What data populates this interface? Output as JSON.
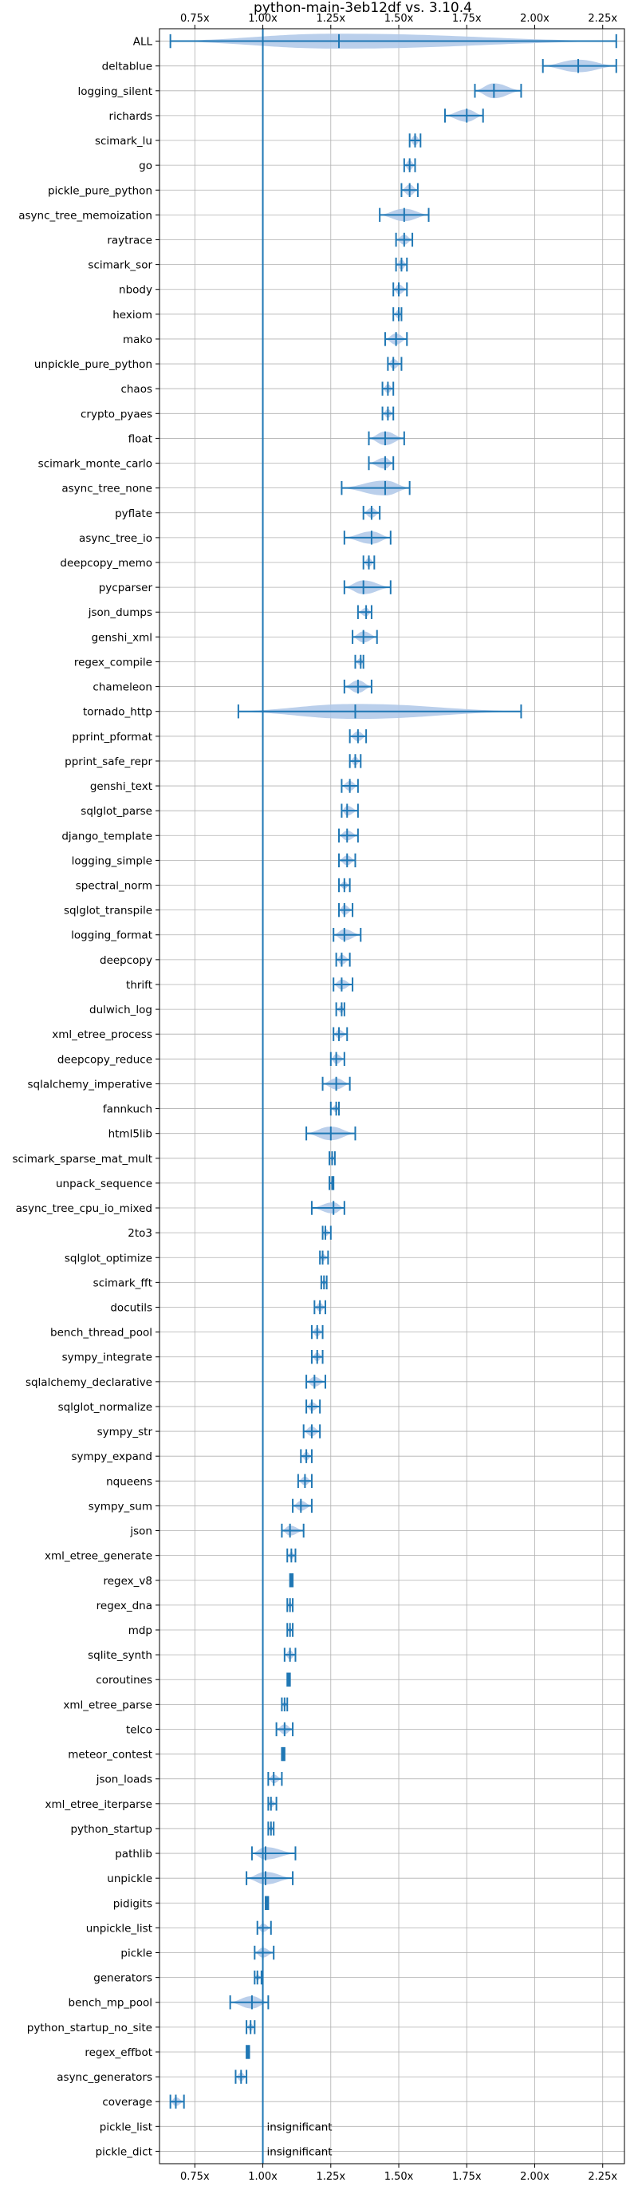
{
  "chart_data": {
    "type": "violin",
    "title": "python-main-3eb12df vs. 3.10.4",
    "xlabel": "",
    "ylabel": "",
    "xlim": [
      0.62,
      2.33
    ],
    "x_ticks": [
      0.75,
      1.0,
      1.25,
      1.5,
      1.75,
      2.0,
      2.25
    ],
    "x_tick_labels": [
      "0.75x",
      "1.00x",
      "1.25x",
      "1.50x",
      "1.75x",
      "2.00x",
      "2.25x"
    ],
    "reference_line": 1.0,
    "grid": true,
    "colors": {
      "line": "#1f77b4",
      "fill": "#aec7e8",
      "grid": "#b0b0b0"
    },
    "categories": [
      "ALL",
      "deltablue",
      "logging_silent",
      "richards",
      "scimark_lu",
      "go",
      "pickle_pure_python",
      "async_tree_memoization",
      "raytrace",
      "scimark_sor",
      "nbody",
      "hexiom",
      "mako",
      "unpickle_pure_python",
      "chaos",
      "crypto_pyaes",
      "float",
      "scimark_monte_carlo",
      "async_tree_none",
      "pyflate",
      "async_tree_io",
      "deepcopy_memo",
      "pycparser",
      "json_dumps",
      "genshi_xml",
      "regex_compile",
      "chameleon",
      "tornado_http",
      "pprint_pformat",
      "pprint_safe_repr",
      "genshi_text",
      "sqlglot_parse",
      "django_template",
      "logging_simple",
      "spectral_norm",
      "sqlglot_transpile",
      "logging_format",
      "deepcopy",
      "thrift",
      "dulwich_log",
      "xml_etree_process",
      "deepcopy_reduce",
      "sqlalchemy_imperative",
      "fannkuch",
      "html5lib",
      "scimark_sparse_mat_mult",
      "unpack_sequence",
      "async_tree_cpu_io_mixed",
      "2to3",
      "sqlglot_optimize",
      "scimark_fft",
      "docutils",
      "bench_thread_pool",
      "sympy_integrate",
      "sqlalchemy_declarative",
      "sqlglot_normalize",
      "sympy_str",
      "sympy_expand",
      "nqueens",
      "sympy_sum",
      "json",
      "xml_etree_generate",
      "regex_v8",
      "regex_dna",
      "mdp",
      "sqlite_synth",
      "coroutines",
      "xml_etree_parse",
      "telco",
      "meteor_contest",
      "json_loads",
      "xml_etree_iterparse",
      "python_startup",
      "pathlib",
      "unpickle",
      "pidigits",
      "unpickle_list",
      "pickle",
      "generators",
      "bench_mp_pool",
      "python_startup_no_site",
      "regex_effbot",
      "async_generators",
      "coverage",
      "pickle_list",
      "pickle_dict"
    ],
    "series": [
      {
        "c": 1.28,
        "lo": 0.66,
        "hi": 2.3,
        "w": 0.6
      },
      {
        "c": 2.16,
        "lo": 2.03,
        "hi": 2.3,
        "w": 0.5
      },
      {
        "c": 1.85,
        "lo": 1.78,
        "hi": 1.95,
        "w": 0.6
      },
      {
        "c": 1.75,
        "lo": 1.67,
        "hi": 1.81,
        "w": 0.5
      },
      {
        "c": 1.56,
        "lo": 1.54,
        "hi": 1.58,
        "w": 0.4
      },
      {
        "c": 1.54,
        "lo": 1.52,
        "hi": 1.56,
        "w": 0.4
      },
      {
        "c": 1.54,
        "lo": 1.51,
        "hi": 1.57,
        "w": 0.45
      },
      {
        "c": 1.52,
        "lo": 1.43,
        "hi": 1.61,
        "w": 0.5
      },
      {
        "c": 1.52,
        "lo": 1.49,
        "hi": 1.55,
        "w": 0.4
      },
      {
        "c": 1.51,
        "lo": 1.49,
        "hi": 1.53,
        "w": 0.4
      },
      {
        "c": 1.5,
        "lo": 1.48,
        "hi": 1.53,
        "w": 0.4
      },
      {
        "c": 1.5,
        "lo": 1.48,
        "hi": 1.51,
        "w": 0.35
      },
      {
        "c": 1.49,
        "lo": 1.45,
        "hi": 1.53,
        "w": 0.45
      },
      {
        "c": 1.48,
        "lo": 1.46,
        "hi": 1.51,
        "w": 0.4
      },
      {
        "c": 1.46,
        "lo": 1.44,
        "hi": 1.48,
        "w": 0.35
      },
      {
        "c": 1.46,
        "lo": 1.44,
        "hi": 1.48,
        "w": 0.35
      },
      {
        "c": 1.45,
        "lo": 1.39,
        "hi": 1.52,
        "w": 0.55
      },
      {
        "c": 1.45,
        "lo": 1.39,
        "hi": 1.48,
        "w": 0.45
      },
      {
        "c": 1.45,
        "lo": 1.29,
        "hi": 1.54,
        "w": 0.6
      },
      {
        "c": 1.4,
        "lo": 1.37,
        "hi": 1.43,
        "w": 0.4
      },
      {
        "c": 1.4,
        "lo": 1.3,
        "hi": 1.47,
        "w": 0.5
      },
      {
        "c": 1.39,
        "lo": 1.37,
        "hi": 1.41,
        "w": 0.35
      },
      {
        "c": 1.37,
        "lo": 1.3,
        "hi": 1.47,
        "w": 0.55
      },
      {
        "c": 1.38,
        "lo": 1.35,
        "hi": 1.4,
        "w": 0.35
      },
      {
        "c": 1.37,
        "lo": 1.33,
        "hi": 1.42,
        "w": 0.45
      },
      {
        "c": 1.36,
        "lo": 1.34,
        "hi": 1.37,
        "w": 0.3
      },
      {
        "c": 1.35,
        "lo": 1.3,
        "hi": 1.4,
        "w": 0.5
      },
      {
        "c": 1.34,
        "lo": 0.91,
        "hi": 1.95,
        "w": 0.6
      },
      {
        "c": 1.35,
        "lo": 1.32,
        "hi": 1.38,
        "w": 0.4
      },
      {
        "c": 1.34,
        "lo": 1.32,
        "hi": 1.36,
        "w": 0.35
      },
      {
        "c": 1.32,
        "lo": 1.29,
        "hi": 1.35,
        "w": 0.4
      },
      {
        "c": 1.31,
        "lo": 1.29,
        "hi": 1.35,
        "w": 0.4
      },
      {
        "c": 1.31,
        "lo": 1.28,
        "hi": 1.35,
        "w": 0.4
      },
      {
        "c": 1.31,
        "lo": 1.28,
        "hi": 1.34,
        "w": 0.4
      },
      {
        "c": 1.3,
        "lo": 1.28,
        "hi": 1.32,
        "w": 0.3
      },
      {
        "c": 1.3,
        "lo": 1.28,
        "hi": 1.33,
        "w": 0.4
      },
      {
        "c": 1.3,
        "lo": 1.26,
        "hi": 1.36,
        "w": 0.45
      },
      {
        "c": 1.29,
        "lo": 1.27,
        "hi": 1.32,
        "w": 0.4
      },
      {
        "c": 1.29,
        "lo": 1.26,
        "hi": 1.33,
        "w": 0.4
      },
      {
        "c": 1.29,
        "lo": 1.27,
        "hi": 1.3,
        "w": 0.3
      },
      {
        "c": 1.28,
        "lo": 1.26,
        "hi": 1.31,
        "w": 0.35
      },
      {
        "c": 1.27,
        "lo": 1.25,
        "hi": 1.3,
        "w": 0.4
      },
      {
        "c": 1.27,
        "lo": 1.22,
        "hi": 1.32,
        "w": 0.45
      },
      {
        "c": 1.27,
        "lo": 1.25,
        "hi": 1.28,
        "w": 0.3
      },
      {
        "c": 1.25,
        "lo": 1.16,
        "hi": 1.34,
        "w": 0.55
      },
      {
        "c": 1.255,
        "lo": 1.245,
        "hi": 1.265,
        "w": 0.25
      },
      {
        "c": 1.255,
        "lo": 1.245,
        "hi": 1.26,
        "w": 0.25
      },
      {
        "c": 1.26,
        "lo": 1.18,
        "hi": 1.3,
        "w": 0.45
      },
      {
        "c": 1.23,
        "lo": 1.22,
        "hi": 1.25,
        "w": 0.3
      },
      {
        "c": 1.22,
        "lo": 1.21,
        "hi": 1.24,
        "w": 0.3
      },
      {
        "c": 1.225,
        "lo": 1.215,
        "hi": 1.235,
        "w": 0.25
      },
      {
        "c": 1.21,
        "lo": 1.19,
        "hi": 1.23,
        "w": 0.35
      },
      {
        "c": 1.2,
        "lo": 1.18,
        "hi": 1.22,
        "w": 0.35
      },
      {
        "c": 1.2,
        "lo": 1.18,
        "hi": 1.22,
        "w": 0.35
      },
      {
        "c": 1.19,
        "lo": 1.16,
        "hi": 1.23,
        "w": 0.4
      },
      {
        "c": 1.18,
        "lo": 1.16,
        "hi": 1.21,
        "w": 0.35
      },
      {
        "c": 1.18,
        "lo": 1.15,
        "hi": 1.21,
        "w": 0.4
      },
      {
        "c": 1.16,
        "lo": 1.14,
        "hi": 1.18,
        "w": 0.35
      },
      {
        "c": 1.155,
        "lo": 1.13,
        "hi": 1.18,
        "w": 0.35
      },
      {
        "c": 1.14,
        "lo": 1.11,
        "hi": 1.18,
        "w": 0.4
      },
      {
        "c": 1.1,
        "lo": 1.07,
        "hi": 1.15,
        "w": 0.4
      },
      {
        "c": 1.105,
        "lo": 1.09,
        "hi": 1.12,
        "w": 0.3
      },
      {
        "c": 1.105,
        "lo": 1.1,
        "hi": 1.11,
        "w": 0.2
      },
      {
        "c": 1.1,
        "lo": 1.09,
        "hi": 1.11,
        "w": 0.3
      },
      {
        "c": 1.1,
        "lo": 1.09,
        "hi": 1.11,
        "w": 0.25
      },
      {
        "c": 1.1,
        "lo": 1.08,
        "hi": 1.12,
        "w": 0.35
      },
      {
        "c": 1.095,
        "lo": 1.09,
        "hi": 1.1,
        "w": 0.25
      },
      {
        "c": 1.08,
        "lo": 1.07,
        "hi": 1.09,
        "w": 0.25
      },
      {
        "c": 1.08,
        "lo": 1.05,
        "hi": 1.11,
        "w": 0.4
      },
      {
        "c": 1.075,
        "lo": 1.07,
        "hi": 1.08,
        "w": 0.2
      },
      {
        "c": 1.04,
        "lo": 1.02,
        "hi": 1.07,
        "w": 0.35
      },
      {
        "c": 1.03,
        "lo": 1.02,
        "hi": 1.05,
        "w": 0.3
      },
      {
        "c": 1.03,
        "lo": 1.02,
        "hi": 1.04,
        "w": 0.25
      },
      {
        "c": 1.01,
        "lo": 0.96,
        "hi": 1.12,
        "w": 0.5
      },
      {
        "c": 1.01,
        "lo": 0.94,
        "hi": 1.11,
        "w": 0.5
      },
      {
        "c": 1.015,
        "lo": 1.01,
        "hi": 1.02,
        "w": 0.2
      },
      {
        "c": 1.0,
        "lo": 0.98,
        "hi": 1.03,
        "w": 0.35
      },
      {
        "c": 1.0,
        "lo": 0.97,
        "hi": 1.04,
        "w": 0.4
      },
      {
        "c": 0.98,
        "lo": 0.97,
        "hi": 0.995,
        "w": 0.25
      },
      {
        "c": 0.96,
        "lo": 0.88,
        "hi": 1.02,
        "w": 0.5
      },
      {
        "c": 0.955,
        "lo": 0.94,
        "hi": 0.97,
        "w": 0.3
      },
      {
        "c": 0.945,
        "lo": 0.94,
        "hi": 0.95,
        "w": 0.15
      },
      {
        "c": 0.92,
        "lo": 0.9,
        "hi": 0.94,
        "w": 0.35
      },
      {
        "c": 0.68,
        "lo": 0.66,
        "hi": 0.71,
        "w": 0.35
      },
      {
        "c": null,
        "lo": null,
        "hi": null,
        "w": 0,
        "note": "insignificant"
      },
      {
        "c": null,
        "lo": null,
        "hi": null,
        "w": 0,
        "note": "insignificant"
      }
    ]
  }
}
